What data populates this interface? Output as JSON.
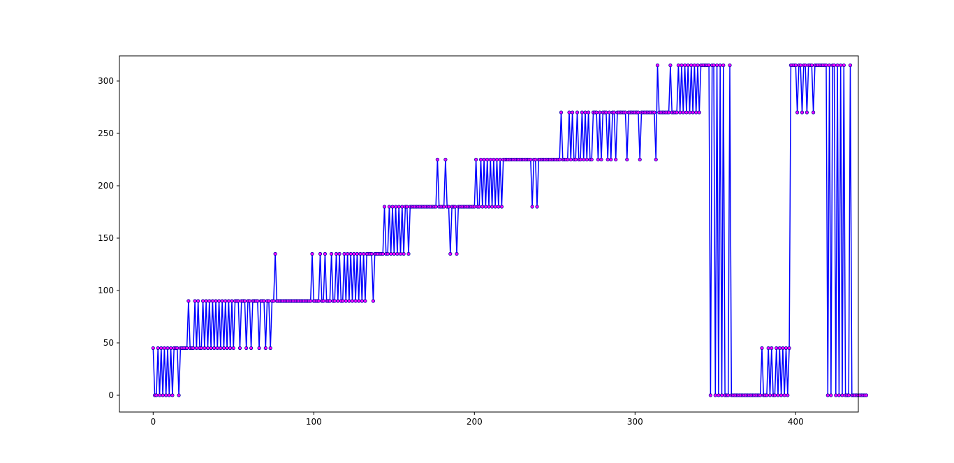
{
  "chart_data": {
    "type": "line",
    "title": "",
    "xlabel": "",
    "ylabel": "",
    "xlim": [
      -21,
      439
    ],
    "ylim": [
      -16,
      324
    ],
    "x_ticks": [
      0,
      100,
      200,
      300,
      400
    ],
    "y_ticks": [
      0,
      50,
      100,
      150,
      200,
      250,
      300
    ],
    "grid": false,
    "legend": "none",
    "line_color": "#0000ff",
    "marker_face_color": "#ff00ff",
    "marker_edge_color": "#0000aa",
    "series": [
      {
        "x_start": 0,
        "x_step": 1,
        "values": [
          45,
          0,
          0,
          45,
          0,
          45,
          0,
          45,
          0,
          45,
          0,
          45,
          0,
          45,
          45,
          45,
          0,
          45,
          45,
          45,
          45,
          45,
          90,
          45,
          45,
          45,
          90,
          45,
          90,
          45,
          45,
          90,
          45,
          90,
          45,
          90,
          45,
          90,
          45,
          90,
          45,
          90,
          45,
          90,
          45,
          90,
          45,
          90,
          45,
          90,
          45,
          90,
          90,
          90,
          45,
          90,
          90,
          90,
          45,
          90,
          90,
          45,
          90,
          90,
          90,
          90,
          45,
          90,
          90,
          90,
          45,
          90,
          90,
          45,
          90,
          90,
          135,
          90,
          90,
          90,
          90,
          90,
          90,
          90,
          90,
          90,
          90,
          90,
          90,
          90,
          90,
          90,
          90,
          90,
          90,
          90,
          90,
          90,
          90,
          135,
          90,
          90,
          90,
          90,
          135,
          90,
          90,
          135,
          90,
          90,
          90,
          135,
          90,
          90,
          135,
          90,
          135,
          90,
          90,
          135,
          90,
          135,
          90,
          135,
          90,
          135,
          90,
          135,
          90,
          135,
          90,
          135,
          90,
          135,
          135,
          135,
          135,
          90,
          135,
          135,
          135,
          135,
          135,
          135,
          180,
          135,
          135,
          180,
          135,
          180,
          135,
          180,
          135,
          180,
          135,
          180,
          135,
          180,
          180,
          135,
          180,
          180,
          180,
          180,
          180,
          180,
          180,
          180,
          180,
          180,
          180,
          180,
          180,
          180,
          180,
          180,
          180,
          225,
          180,
          180,
          180,
          180,
          225,
          180,
          180,
          135,
          180,
          180,
          180,
          135,
          180,
          180,
          180,
          180,
          180,
          180,
          180,
          180,
          180,
          180,
          180,
          225,
          180,
          180,
          225,
          180,
          225,
          180,
          225,
          180,
          225,
          180,
          225,
          180,
          225,
          180,
          225,
          180,
          225,
          225,
          225,
          225,
          225,
          225,
          225,
          225,
          225,
          225,
          225,
          225,
          225,
          225,
          225,
          225,
          225,
          225,
          180,
          225,
          225,
          180,
          225,
          225,
          225,
          225,
          225,
          225,
          225,
          225,
          225,
          225,
          225,
          225,
          225,
          225,
          270,
          225,
          225,
          225,
          225,
          270,
          225,
          270,
          225,
          225,
          270,
          225,
          225,
          270,
          225,
          270,
          225,
          270,
          225,
          225,
          270,
          270,
          270,
          225,
          270,
          225,
          270,
          270,
          270,
          225,
          270,
          225,
          270,
          270,
          225,
          270,
          270,
          270,
          270,
          270,
          270,
          225,
          270,
          270,
          270,
          270,
          270,
          270,
          270,
          225,
          270,
          270,
          270,
          270,
          270,
          270,
          270,
          270,
          270,
          225,
          315,
          270,
          270,
          270,
          270,
          270,
          270,
          270,
          315,
          270,
          270,
          270,
          270,
          315,
          270,
          315,
          270,
          315,
          270,
          315,
          270,
          315,
          270,
          315,
          270,
          315,
          270,
          315,
          315,
          315,
          315,
          315,
          315,
          0,
          315,
          315,
          0,
          315,
          0,
          315,
          0,
          315,
          0,
          0,
          0,
          315,
          0,
          0,
          0,
          0,
          0,
          0,
          0,
          0,
          0,
          0,
          0,
          0,
          0,
          0,
          0,
          0,
          0,
          0,
          0,
          45,
          0,
          0,
          0,
          45,
          0,
          45,
          0,
          0,
          45,
          0,
          45,
          0,
          45,
          0,
          45,
          0,
          45,
          315,
          315,
          315,
          315,
          270,
          315,
          315,
          270,
          315,
          315,
          270,
          315,
          315,
          315,
          270,
          315,
          315,
          315,
          315,
          315,
          315,
          315,
          315,
          0,
          315,
          0,
          315,
          315,
          0,
          315,
          0,
          315,
          0,
          315,
          0,
          0,
          0,
          315,
          0,
          0,
          0,
          0,
          0,
          0,
          0,
          0,
          0,
          0
        ]
      }
    ]
  }
}
